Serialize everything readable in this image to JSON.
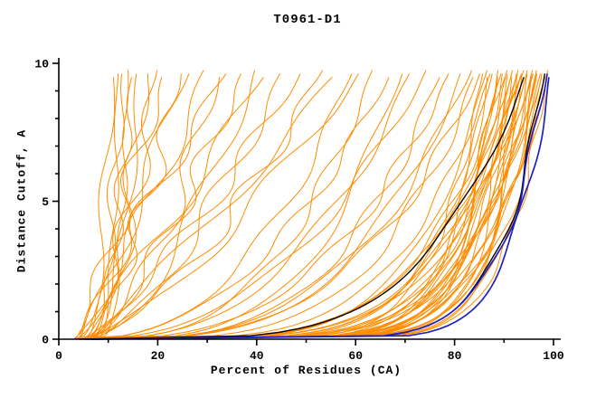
{
  "chart_data": {
    "type": "line",
    "title": "T0961-D1",
    "xlabel": "Percent of Residues (CA)",
    "ylabel": "Distance Cutoff, A",
    "xlim": [
      0,
      100
    ],
    "ylim": [
      0,
      10
    ],
    "x_major_ticks": [
      0,
      20,
      40,
      60,
      80,
      100
    ],
    "x_minor_step": 10,
    "y_major_ticks": [
      0,
      5,
      10
    ],
    "y_minor_step": 1,
    "grid": false,
    "legend": "none",
    "colors": {
      "model_curves": "#FF8C00",
      "highlight_curves": "#000000",
      "best_curves": "#2020C0",
      "axis": "#000000",
      "background": "#FFFFFF"
    },
    "curve_model": "x(y) = x_start + (x_end - x_start) * (y/10)^shape ; each series entry = [x_end, shape]",
    "series": {
      "orange": [
        [
          11,
          0.3
        ],
        [
          12,
          0.18
        ],
        [
          13,
          0.35
        ],
        [
          14,
          0.22
        ],
        [
          15,
          0.45
        ],
        [
          16,
          0.28
        ],
        [
          18,
          0.5
        ],
        [
          20,
          0.6
        ],
        [
          22,
          0.9
        ],
        [
          25,
          0.7
        ],
        [
          27,
          1.0
        ],
        [
          30,
          0.8
        ],
        [
          33,
          0.6
        ],
        [
          35,
          1.1
        ],
        [
          38,
          0.75
        ],
        [
          40,
          0.55
        ],
        [
          43,
          0.9
        ],
        [
          46,
          0.65
        ],
        [
          50,
          0.8
        ],
        [
          54,
          0.6
        ],
        [
          58,
          0.9
        ],
        [
          62,
          0.7
        ],
        [
          60,
          0.4
        ],
        [
          64,
          0.35
        ],
        [
          68,
          0.45
        ],
        [
          70,
          0.3
        ],
        [
          72,
          0.38
        ],
        [
          75,
          0.42
        ],
        [
          78,
          0.3
        ],
        [
          80,
          0.35
        ],
        [
          82,
          0.28
        ],
        [
          84,
          0.32
        ],
        [
          85,
          0.25
        ],
        [
          86,
          0.3
        ],
        [
          86,
          0.12
        ],
        [
          87,
          0.18
        ],
        [
          87,
          0.1
        ],
        [
          88,
          0.15
        ],
        [
          88,
          0.22
        ],
        [
          89,
          0.12
        ],
        [
          89,
          0.09
        ],
        [
          90,
          0.16
        ],
        [
          90,
          0.11
        ],
        [
          91,
          0.2
        ],
        [
          91,
          0.13
        ],
        [
          91,
          0.09
        ],
        [
          92,
          0.17
        ],
        [
          92,
          0.12
        ],
        [
          92,
          0.1
        ],
        [
          93,
          0.15
        ],
        [
          93,
          0.11
        ],
        [
          93,
          0.08
        ],
        [
          94,
          0.19
        ],
        [
          94,
          0.13
        ],
        [
          94,
          0.1
        ],
        [
          95,
          0.16
        ],
        [
          95,
          0.12
        ],
        [
          95,
          0.09
        ],
        [
          96,
          0.14
        ],
        [
          96,
          0.11
        ],
        [
          96,
          0.08
        ],
        [
          97,
          0.13
        ],
        [
          97,
          0.1
        ],
        [
          97,
          0.15
        ],
        [
          98,
          0.12
        ],
        [
          98,
          0.09
        ],
        [
          98,
          0.16
        ],
        [
          99,
          0.11
        ],
        [
          99,
          0.13
        ],
        [
          99,
          0.09
        ],
        [
          96.5,
          0.2
        ],
        [
          94.5,
          0.22
        ]
      ],
      "black": [
        [
          95,
          0.22
        ],
        [
          98.5,
          0.1
        ]
      ],
      "blue": [
        [
          99.5,
          0.085
        ],
        [
          99.0,
          0.1
        ]
      ]
    }
  }
}
